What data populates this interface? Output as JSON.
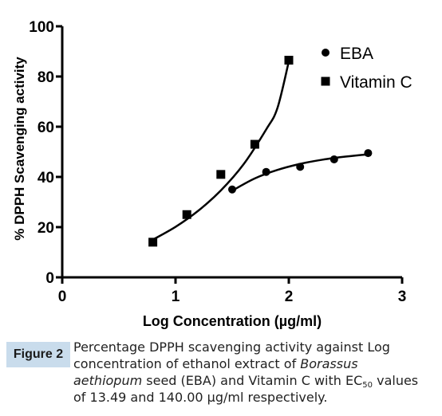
{
  "chart_data": {
    "type": "scatter",
    "title": "",
    "xlabel": "Log Concentration (µg/ml)",
    "ylabel": "% DPPH Scavenging activity",
    "xlim": [
      0,
      3
    ],
    "ylim": [
      0,
      100
    ],
    "xticks": [
      "0",
      "1",
      "2",
      "3"
    ],
    "yticks": [
      "0",
      "20",
      "40",
      "60",
      "80",
      "100"
    ],
    "legend_position": "top-right",
    "grid": false,
    "series": [
      {
        "name": "EBA",
        "marker": "circle",
        "color": "#000000",
        "x": [
          1.5,
          1.8,
          2.1,
          2.4,
          2.7
        ],
        "y": [
          35,
          42,
          44,
          47,
          49.5
        ],
        "fit_curve": [
          [
            1.5,
            34.5
          ],
          [
            1.7,
            39.4
          ],
          [
            1.9,
            42.8
          ],
          [
            2.1,
            45.2
          ],
          [
            2.3,
            46.9
          ],
          [
            2.5,
            48.1
          ],
          [
            2.7,
            49
          ]
        ]
      },
      {
        "name": "Vitamin C",
        "marker": "square",
        "color": "#000000",
        "x": [
          0.8,
          1.1,
          1.4,
          1.7,
          2.0
        ],
        "y": [
          14,
          25,
          41,
          53,
          86.5
        ],
        "fit_curve": [
          [
            0.8,
            15
          ],
          [
            1.0,
            20.1
          ],
          [
            1.2,
            26.5
          ],
          [
            1.4,
            34.6
          ],
          [
            1.6,
            45
          ],
          [
            1.8,
            58.9
          ],
          [
            1.9,
            67.5
          ],
          [
            2.0,
            86
          ]
        ]
      }
    ]
  },
  "caption": {
    "label": "Figure 2",
    "text_1": "Percentage DPPH scavenging activity against Log concentration of ethanol extract of ",
    "species": "Borassus aethiopum",
    "text_2": " seed (EBA) and Vitamin C with EC",
    "subscript": "50",
    "text_3": " values of 13.49 and 140.00 µg/ml respectively."
  }
}
